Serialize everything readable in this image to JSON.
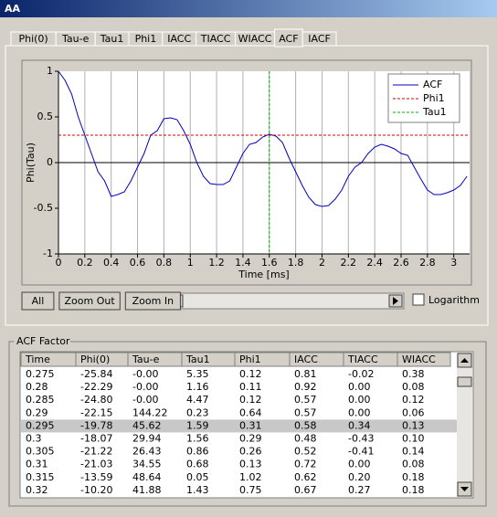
{
  "window": {
    "title": "AA"
  },
  "tabs": [
    "Phi(0)",
    "Tau-e",
    "Tau1",
    "Phi1",
    "IACC",
    "TIACC",
    "WIACC",
    "ACF",
    "IACF"
  ],
  "active_tab": 7,
  "chart_data": {
    "type": "line",
    "x_label": "Time [ms]",
    "y_label": "Phi(Tau)",
    "xlim": [
      0,
      3.12
    ],
    "ylim": [
      -1,
      1
    ],
    "xticks": [
      0,
      0.2,
      0.4,
      0.6,
      0.8,
      1,
      1.2,
      1.4,
      1.6,
      1.8,
      2,
      2.2,
      2.4,
      2.6,
      2.8,
      3
    ],
    "yticks": [
      -1,
      -0.5,
      0,
      0.5,
      1
    ],
    "grid": "x",
    "x": [
      0,
      0.05,
      0.1,
      0.15,
      0.2,
      0.25,
      0.3,
      0.35,
      0.4,
      0.45,
      0.5,
      0.55,
      0.6,
      0.65,
      0.7,
      0.75,
      0.8,
      0.85,
      0.9,
      0.95,
      1,
      1.05,
      1.1,
      1.15,
      1.2,
      1.25,
      1.3,
      1.35,
      1.4,
      1.45,
      1.5,
      1.55,
      1.6,
      1.65,
      1.7,
      1.75,
      1.8,
      1.85,
      1.9,
      1.95,
      2,
      2.05,
      2.1,
      2.15,
      2.2,
      2.25,
      2.3,
      2.35,
      2.4,
      2.45,
      2.5,
      2.55,
      2.6,
      2.65,
      2.7,
      2.75,
      2.8,
      2.85,
      2.9,
      2.95,
      3,
      3.05,
      3.1
    ],
    "series": [
      {
        "name": "ACF",
        "color": "#0000c0",
        "values": [
          1,
          0.9,
          0.75,
          0.5,
          0.3,
          0.1,
          -0.1,
          -0.2,
          -0.37,
          -0.35,
          -0.32,
          -0.2,
          -0.05,
          0.1,
          0.3,
          0.35,
          0.48,
          0.49,
          0.47,
          0.35,
          0.2,
          0,
          -0.15,
          -0.23,
          -0.24,
          -0.24,
          -0.2,
          -0.05,
          0.1,
          0.2,
          0.22,
          0.28,
          0.31,
          0.29,
          0.22,
          0.05,
          -0.1,
          -0.25,
          -0.38,
          -0.46,
          -0.48,
          -0.47,
          -0.4,
          -0.3,
          -0.15,
          -0.05,
          0,
          0.1,
          0.17,
          0.2,
          0.18,
          0.15,
          0.1,
          0.08,
          -0.05,
          -0.18,
          -0.3,
          -0.35,
          -0.35,
          -0.33,
          -0.3,
          -0.25,
          -0.15
        ]
      },
      {
        "name": "Phi1",
        "color": "#d00000",
        "dashed": true,
        "y": 0.3
      },
      {
        "name": "Tau1",
        "color": "#00b000",
        "dashed": true,
        "x": 1.6
      }
    ]
  },
  "buttons": [
    "All",
    "Zoom Out",
    "Zoom In"
  ],
  "checkbox": "Logarithm",
  "table": {
    "title": "ACF Factor",
    "selected_row": 4,
    "columns": [
      "Time",
      "Phi(0)",
      "Tau-e",
      "Tau1",
      "Phi1",
      "IACC",
      "TIACC",
      "WIACC"
    ],
    "rows": [
      [
        "0.275",
        "-25.84",
        "-0.00",
        "5.35",
        "0.12",
        "0.81",
        "-0.02",
        "0.38"
      ],
      [
        "0.28",
        "-22.29",
        "-0.00",
        "1.16",
        "0.11",
        "0.92",
        "0.00",
        "0.08"
      ],
      [
        "0.285",
        "-24.80",
        "-0.00",
        "4.47",
        "0.12",
        "0.57",
        "0.00",
        "0.12"
      ],
      [
        "0.29",
        "-22.15",
        "144.22",
        "0.23",
        "0.64",
        "0.57",
        "0.00",
        "0.06"
      ],
      [
        "0.295",
        "-19.78",
        "45.62",
        "1.59",
        "0.31",
        "0.58",
        "0.34",
        "0.13"
      ],
      [
        "0.3",
        "-18.07",
        "29.94",
        "1.56",
        "0.29",
        "0.48",
        "-0.43",
        "0.10"
      ],
      [
        "0.305",
        "-21.22",
        "26.43",
        "0.86",
        "0.26",
        "0.52",
        "-0.41",
        "0.14"
      ],
      [
        "0.31",
        "-21.03",
        "34.55",
        "0.68",
        "0.13",
        "0.72",
        "0.00",
        "0.08"
      ],
      [
        "0.315",
        "-13.59",
        "48.64",
        "0.05",
        "1.02",
        "0.62",
        "0.20",
        "0.18"
      ],
      [
        "0.32",
        "-10.20",
        "41.88",
        "1.43",
        "0.75",
        "0.67",
        "0.27",
        "0.18"
      ]
    ]
  }
}
